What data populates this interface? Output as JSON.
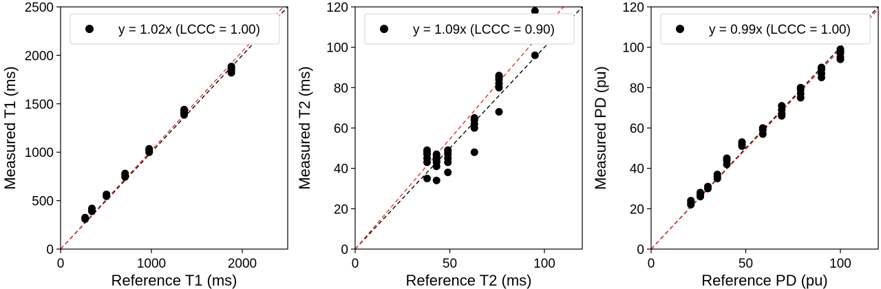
{
  "chart_data": [
    {
      "type": "scatter",
      "xlabel": "Reference T1 (ms)",
      "ylabel": "Measured T1 (ms)",
      "xlim": [
        0,
        2500
      ],
      "ylim": [
        0,
        2500
      ],
      "xticks": [
        0,
        1000,
        2000
      ],
      "yticks": [
        0,
        500,
        1000,
        1500,
        2000,
        2500
      ],
      "grid": false,
      "legend_position": "top-right",
      "legend": "y = 1.02x (LCCC = 1.00)",
      "fit_slope": 1.02,
      "identity_line": true,
      "colors": {
        "points": "#000000",
        "fit_line": "#e8302a",
        "identity_line": "#000000"
      },
      "series": [
        {
          "x": [
            270,
            270,
            345,
            345,
            345,
            505,
            505,
            710,
            710,
            710,
            975,
            975,
            975,
            1360,
            1360,
            1360,
            1360,
            1880,
            1880,
            1880,
            1880
          ],
          "y": [
            310,
            325,
            390,
            405,
            420,
            545,
            565,
            745,
            765,
            780,
            1000,
            1020,
            1035,
            1385,
            1405,
            1425,
            1440,
            1820,
            1845,
            1865,
            1885
          ]
        }
      ]
    },
    {
      "type": "scatter",
      "xlabel": "Reference T2 (ms)",
      "ylabel": "Measured T2 (ms)",
      "xlim": [
        0,
        120
      ],
      "ylim": [
        0,
        120
      ],
      "xticks": [
        0,
        50,
        100
      ],
      "yticks": [
        0,
        20,
        40,
        60,
        80,
        100,
        120
      ],
      "grid": false,
      "legend_position": "top-right",
      "legend": "y = 1.09x (LCCC = 0.90)",
      "fit_slope": 1.09,
      "identity_line": true,
      "colors": {
        "points": "#000000",
        "fit_line": "#e8302a",
        "identity_line": "#000000"
      },
      "series": [
        {
          "x": [
            38,
            38,
            38,
            38,
            38,
            38,
            43,
            43,
            43,
            43,
            43,
            43,
            43,
            49,
            49,
            49,
            49,
            49,
            49,
            63,
            63,
            63,
            63,
            63,
            76,
            76,
            76,
            76,
            76,
            76,
            95,
            95
          ],
          "y": [
            35,
            43,
            45,
            47,
            48,
            49,
            34,
            41,
            43,
            44,
            45,
            46,
            47,
            38,
            43,
            45,
            47,
            48,
            49,
            48,
            60,
            62,
            64,
            65,
            68,
            80,
            82,
            84,
            85,
            86,
            96,
            118
          ]
        }
      ]
    },
    {
      "type": "scatter",
      "xlabel": "Reference PD (pu)",
      "ylabel": "Measured PD (pu)",
      "xlim": [
        0,
        120
      ],
      "ylim": [
        0,
        120
      ],
      "xticks": [
        0,
        50,
        100
      ],
      "yticks": [
        0,
        20,
        40,
        60,
        80,
        100,
        120
      ],
      "grid": false,
      "legend_position": "top-right",
      "legend": "y = 0.99x (LCCC = 1.00)",
      "fit_slope": 0.99,
      "identity_line": true,
      "colors": {
        "points": "#000000",
        "fit_line": "#e8302a",
        "identity_line": "#000000"
      },
      "series": [
        {
          "x": [
            21,
            21,
            21,
            26,
            26,
            26,
            30,
            30,
            35,
            35,
            35,
            40,
            40,
            40,
            48,
            48,
            48,
            59,
            59,
            59,
            69,
            69,
            69,
            69,
            79,
            79,
            79,
            79,
            90,
            90,
            90,
            90,
            100,
            100,
            100,
            100,
            100
          ],
          "y": [
            22,
            23,
            24,
            26,
            27,
            28,
            30,
            31,
            35,
            36,
            37,
            42,
            44,
            45,
            51,
            52,
            53,
            57,
            59,
            60,
            66,
            67,
            69,
            71,
            75,
            77,
            79,
            80,
            85,
            87,
            89,
            90,
            94,
            95,
            97,
            98,
            99
          ]
        }
      ]
    }
  ]
}
